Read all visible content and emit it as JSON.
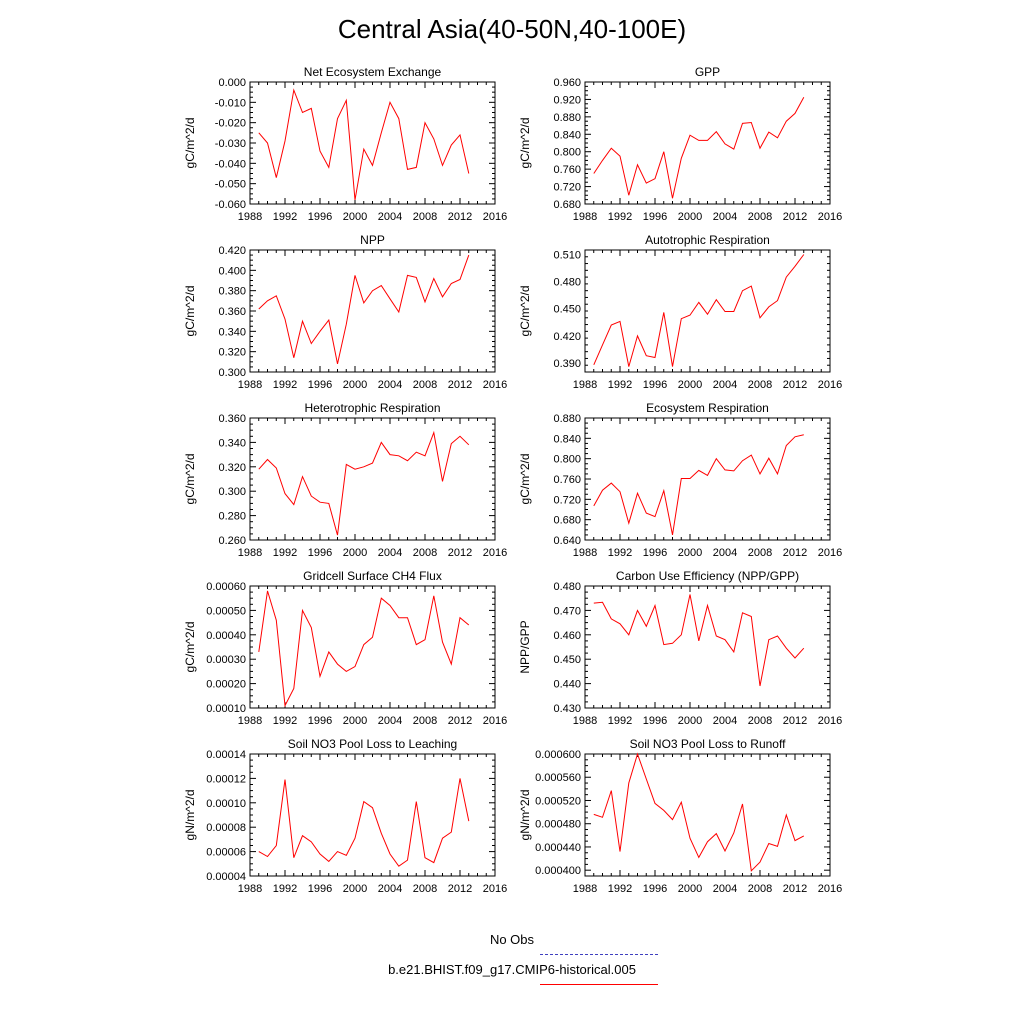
{
  "title": "Central Asia(40-50N,40-100E)",
  "colors": {
    "model": "#ff0000",
    "obs": "#3f3fbf"
  },
  "legend": [
    {
      "label": "No Obs",
      "style": "dashed",
      "color": "#3f3fbf"
    },
    {
      "label": "b.e21.BHIST.f09_g17.CMIP6-historical.005",
      "style": "solid",
      "color": "#ff0000"
    }
  ],
  "chart_data": [
    {
      "type": "line",
      "title": "Net Ecosystem Exchange",
      "ylabel": "gC/m^2/d",
      "xlim": [
        1988,
        2016
      ],
      "ylim": [
        -0.06,
        0.0
      ],
      "yticks": [
        "-0.060",
        "-0.050",
        "-0.040",
        "-0.030",
        "-0.020",
        "-0.010",
        "0.000"
      ],
      "xticks": [
        "1988",
        "1992",
        "1996",
        "2000",
        "2004",
        "2008",
        "2012",
        "2016"
      ],
      "x": [
        1989,
        1990,
        1991,
        1992,
        1993,
        1994,
        1995,
        1996,
        1997,
        1998,
        1999,
        2000,
        2001,
        2002,
        2003,
        2004,
        2005,
        2006,
        2007,
        2008,
        2009,
        2010,
        2011,
        2012,
        2013
      ],
      "series": [
        {
          "values": [
            -0.025,
            -0.03,
            -0.047,
            -0.029,
            -0.004,
            -0.015,
            -0.013,
            -0.034,
            -0.042,
            -0.018,
            -0.009,
            -0.058,
            -0.033,
            -0.041,
            -0.025,
            -0.01,
            -0.018,
            -0.043,
            -0.042,
            -0.02,
            -0.028,
            -0.041,
            -0.031,
            -0.026,
            -0.045
          ]
        }
      ]
    },
    {
      "type": "line",
      "title": "GPP",
      "ylabel": "gC/m^2/d",
      "xlim": [
        1988,
        2016
      ],
      "ylim": [
        0.68,
        0.96
      ],
      "yticks": [
        "0.680",
        "0.720",
        "0.760",
        "0.800",
        "0.840",
        "0.880",
        "0.920",
        "0.960"
      ],
      "xticks": [
        "1988",
        "1992",
        "1996",
        "2000",
        "2004",
        "2008",
        "2012",
        "2016"
      ],
      "x": [
        1989,
        1990,
        1991,
        1992,
        1993,
        1994,
        1995,
        1996,
        1997,
        1998,
        1999,
        2000,
        2001,
        2002,
        2003,
        2004,
        2005,
        2006,
        2007,
        2008,
        2009,
        2010,
        2011,
        2012,
        2013
      ],
      "series": [
        {
          "values": [
            0.75,
            0.78,
            0.808,
            0.79,
            0.7,
            0.77,
            0.728,
            0.738,
            0.8,
            0.693,
            0.785,
            0.838,
            0.826,
            0.826,
            0.846,
            0.818,
            0.806,
            0.865,
            0.867,
            0.808,
            0.845,
            0.832,
            0.87,
            0.888,
            0.925
          ]
        }
      ]
    },
    {
      "type": "line",
      "title": "NPP",
      "ylabel": "gC/m^2/d",
      "xlim": [
        1988,
        2016
      ],
      "ylim": [
        0.3,
        0.42
      ],
      "yticks": [
        "0.300",
        "0.320",
        "0.340",
        "0.360",
        "0.380",
        "0.400",
        "0.420"
      ],
      "xticks": [
        "1988",
        "1992",
        "1996",
        "2000",
        "2004",
        "2008",
        "2012",
        "2016"
      ],
      "x": [
        1989,
        1990,
        1991,
        1992,
        1993,
        1994,
        1995,
        1996,
        1997,
        1998,
        1999,
        2000,
        2001,
        2002,
        2003,
        2004,
        2005,
        2006,
        2007,
        2008,
        2009,
        2010,
        2011,
        2012,
        2013
      ],
      "series": [
        {
          "values": [
            0.362,
            0.37,
            0.375,
            0.352,
            0.314,
            0.35,
            0.328,
            0.34,
            0.351,
            0.308,
            0.347,
            0.395,
            0.368,
            0.38,
            0.385,
            0.372,
            0.359,
            0.395,
            0.393,
            0.369,
            0.392,
            0.374,
            0.387,
            0.391,
            0.415
          ]
        }
      ]
    },
    {
      "type": "line",
      "title": "Autotrophic Respiration",
      "ylabel": "gC/m^2/d",
      "xlim": [
        1988,
        2016
      ],
      "ylim": [
        0.38,
        0.515
      ],
      "yticks": [
        "0.390",
        "0.420",
        "0.450",
        "0.480",
        "0.510"
      ],
      "xticks": [
        "1988",
        "1992",
        "1996",
        "2000",
        "2004",
        "2008",
        "2012",
        "2016"
      ],
      "x": [
        1989,
        1990,
        1991,
        1992,
        1993,
        1994,
        1995,
        1996,
        1997,
        1998,
        1999,
        2000,
        2001,
        2002,
        2003,
        2004,
        2005,
        2006,
        2007,
        2008,
        2009,
        2010,
        2011,
        2012,
        2013
      ],
      "series": [
        {
          "values": [
            0.388,
            0.41,
            0.432,
            0.436,
            0.386,
            0.42,
            0.398,
            0.396,
            0.446,
            0.386,
            0.439,
            0.443,
            0.457,
            0.444,
            0.46,
            0.447,
            0.447,
            0.47,
            0.475,
            0.44,
            0.452,
            0.459,
            0.485,
            0.497,
            0.51
          ]
        }
      ]
    },
    {
      "type": "line",
      "title": "Heterotrophic Respiration",
      "ylabel": "gC/m^2/d",
      "xlim": [
        1988,
        2016
      ],
      "ylim": [
        0.26,
        0.36
      ],
      "yticks": [
        "0.260",
        "0.280",
        "0.300",
        "0.320",
        "0.340",
        "0.360"
      ],
      "xticks": [
        "1988",
        "1992",
        "1996",
        "2000",
        "2004",
        "2008",
        "2012",
        "2016"
      ],
      "x": [
        1989,
        1990,
        1991,
        1992,
        1993,
        1994,
        1995,
        1996,
        1997,
        1998,
        1999,
        2000,
        2001,
        2002,
        2003,
        2004,
        2005,
        2006,
        2007,
        2008,
        2009,
        2010,
        2011,
        2012,
        2013
      ],
      "series": [
        {
          "values": [
            0.318,
            0.326,
            0.319,
            0.298,
            0.289,
            0.312,
            0.296,
            0.291,
            0.29,
            0.264,
            0.322,
            0.318,
            0.32,
            0.323,
            0.34,
            0.33,
            0.329,
            0.325,
            0.332,
            0.329,
            0.348,
            0.308,
            0.339,
            0.345,
            0.338
          ]
        }
      ]
    },
    {
      "type": "line",
      "title": "Ecosystem Respiration",
      "ylabel": "gC/m^2/d",
      "xlim": [
        1988,
        2016
      ],
      "ylim": [
        0.64,
        0.88
      ],
      "yticks": [
        "0.640",
        "0.680",
        "0.720",
        "0.760",
        "0.800",
        "0.840",
        "0.880"
      ],
      "xticks": [
        "1988",
        "1992",
        "1996",
        "2000",
        "2004",
        "2008",
        "2012",
        "2016"
      ],
      "x": [
        1989,
        1990,
        1991,
        1992,
        1993,
        1994,
        1995,
        1996,
        1997,
        1998,
        1999,
        2000,
        2001,
        2002,
        2003,
        2004,
        2005,
        2006,
        2007,
        2008,
        2009,
        2010,
        2011,
        2012,
        2013
      ],
      "series": [
        {
          "values": [
            0.707,
            0.738,
            0.752,
            0.735,
            0.673,
            0.732,
            0.693,
            0.686,
            0.737,
            0.65,
            0.761,
            0.761,
            0.777,
            0.767,
            0.8,
            0.778,
            0.776,
            0.796,
            0.807,
            0.77,
            0.801,
            0.77,
            0.826,
            0.843,
            0.847
          ]
        }
      ]
    },
    {
      "type": "line",
      "title": "Gridcell Surface CH4 Flux",
      "ylabel": "gC/m^2/d",
      "xlim": [
        1988,
        2016
      ],
      "ylim": [
        0.0001,
        0.0006
      ],
      "yticks": [
        "0.00010",
        "0.00020",
        "0.00030",
        "0.00040",
        "0.00050",
        "0.00060"
      ],
      "xticks": [
        "1988",
        "1992",
        "1996",
        "2000",
        "2004",
        "2008",
        "2012",
        "2016"
      ],
      "x": [
        1989,
        1990,
        1991,
        1992,
        1993,
        1994,
        1995,
        1996,
        1997,
        1998,
        1999,
        2000,
        2001,
        2002,
        2003,
        2004,
        2005,
        2006,
        2007,
        2008,
        2009,
        2010,
        2011,
        2012,
        2013
      ],
      "series": [
        {
          "values": [
            0.00033,
            0.00058,
            0.00046,
            0.00011,
            0.00018,
            0.0005,
            0.00043,
            0.00023,
            0.00033,
            0.00028,
            0.00025,
            0.00027,
            0.00036,
            0.00039,
            0.00055,
            0.00052,
            0.00047,
            0.00047,
            0.00036,
            0.00038,
            0.00056,
            0.00037,
            0.00028,
            0.00047,
            0.00044
          ]
        }
      ]
    },
    {
      "type": "line",
      "title": "Carbon Use Efficiency (NPP/GPP)",
      "ylabel": "NPP/GPP",
      "xlim": [
        1988,
        2016
      ],
      "ylim": [
        0.43,
        0.48
      ],
      "yticks": [
        "0.430",
        "0.440",
        "0.450",
        "0.460",
        "0.470",
        "0.480"
      ],
      "xticks": [
        "1988",
        "1992",
        "1996",
        "2000",
        "2004",
        "2008",
        "2012",
        "2016"
      ],
      "x": [
        1989,
        1990,
        1991,
        1992,
        1993,
        1994,
        1995,
        1996,
        1997,
        1998,
        1999,
        2000,
        2001,
        2002,
        2003,
        2004,
        2005,
        2006,
        2007,
        2008,
        2009,
        2010,
        2011,
        2012,
        2013
      ],
      "series": [
        {
          "values": [
            0.473,
            0.4733,
            0.4665,
            0.4645,
            0.46,
            0.47,
            0.4635,
            0.472,
            0.456,
            0.4565,
            0.46,
            0.4765,
            0.4575,
            0.472,
            0.4595,
            0.458,
            0.453,
            0.469,
            0.4675,
            0.439,
            0.458,
            0.4595,
            0.4545,
            0.4505,
            0.4545
          ]
        }
      ]
    },
    {
      "type": "line",
      "title": "Soil NO3 Pool Loss to Leaching",
      "ylabel": "gN/m^2/d",
      "xlim": [
        1988,
        2016
      ],
      "ylim": [
        4e-05,
        0.00014
      ],
      "yticks": [
        "0.00004",
        "0.00006",
        "0.00008",
        "0.00010",
        "0.00012",
        "0.00014"
      ],
      "xticks": [
        "1988",
        "1992",
        "1996",
        "2000",
        "2004",
        "2008",
        "2012",
        "2016"
      ],
      "x": [
        1989,
        1990,
        1991,
        1992,
        1993,
        1994,
        1995,
        1996,
        1997,
        1998,
        1999,
        2000,
        2001,
        2002,
        2003,
        2004,
        2005,
        2006,
        2007,
        2008,
        2009,
        2010,
        2011,
        2012,
        2013
      ],
      "series": [
        {
          "values": [
            6e-05,
            5.6e-05,
            6.5e-05,
            0.000119,
            5.5e-05,
            7.3e-05,
            6.8e-05,
            5.8e-05,
            5.2e-05,
            6e-05,
            5.7e-05,
            7.1e-05,
            0.000101,
            9.6e-05,
            7.5e-05,
            5.8e-05,
            4.8e-05,
            5.3e-05,
            0.000101,
            5.5e-05,
            5.1e-05,
            7.1e-05,
            7.6e-05,
            0.00012,
            8.5e-05
          ]
        }
      ]
    },
    {
      "type": "line",
      "title": "Soil NO3 Pool Loss to Runoff",
      "ylabel": "gN/m^2/d",
      "xlim": [
        1988,
        2016
      ],
      "ylim": [
        0.00039,
        0.0006
      ],
      "yticks": [
        "0.000400",
        "0.000440",
        "0.000480",
        "0.000520",
        "0.000560",
        "0.000600"
      ],
      "xticks": [
        "1988",
        "1992",
        "1996",
        "2000",
        "2004",
        "2008",
        "2012",
        "2016"
      ],
      "x": [
        1989,
        1990,
        1991,
        1992,
        1993,
        1994,
        1995,
        1996,
        1997,
        1998,
        1999,
        2000,
        2001,
        2002,
        2003,
        2004,
        2005,
        2006,
        2007,
        2008,
        2009,
        2010,
        2011,
        2012,
        2013
      ],
      "series": [
        {
          "values": [
            0.000496,
            0.000491,
            0.000537,
            0.000432,
            0.00055,
            0.0006,
            0.000557,
            0.000515,
            0.000503,
            0.000487,
            0.000517,
            0.000455,
            0.000422,
            0.000449,
            0.000463,
            0.000433,
            0.000464,
            0.000514,
            0.000399,
            0.000414,
            0.000446,
            0.000441,
            0.000495,
            0.000451,
            0.000459
          ]
        }
      ]
    }
  ]
}
